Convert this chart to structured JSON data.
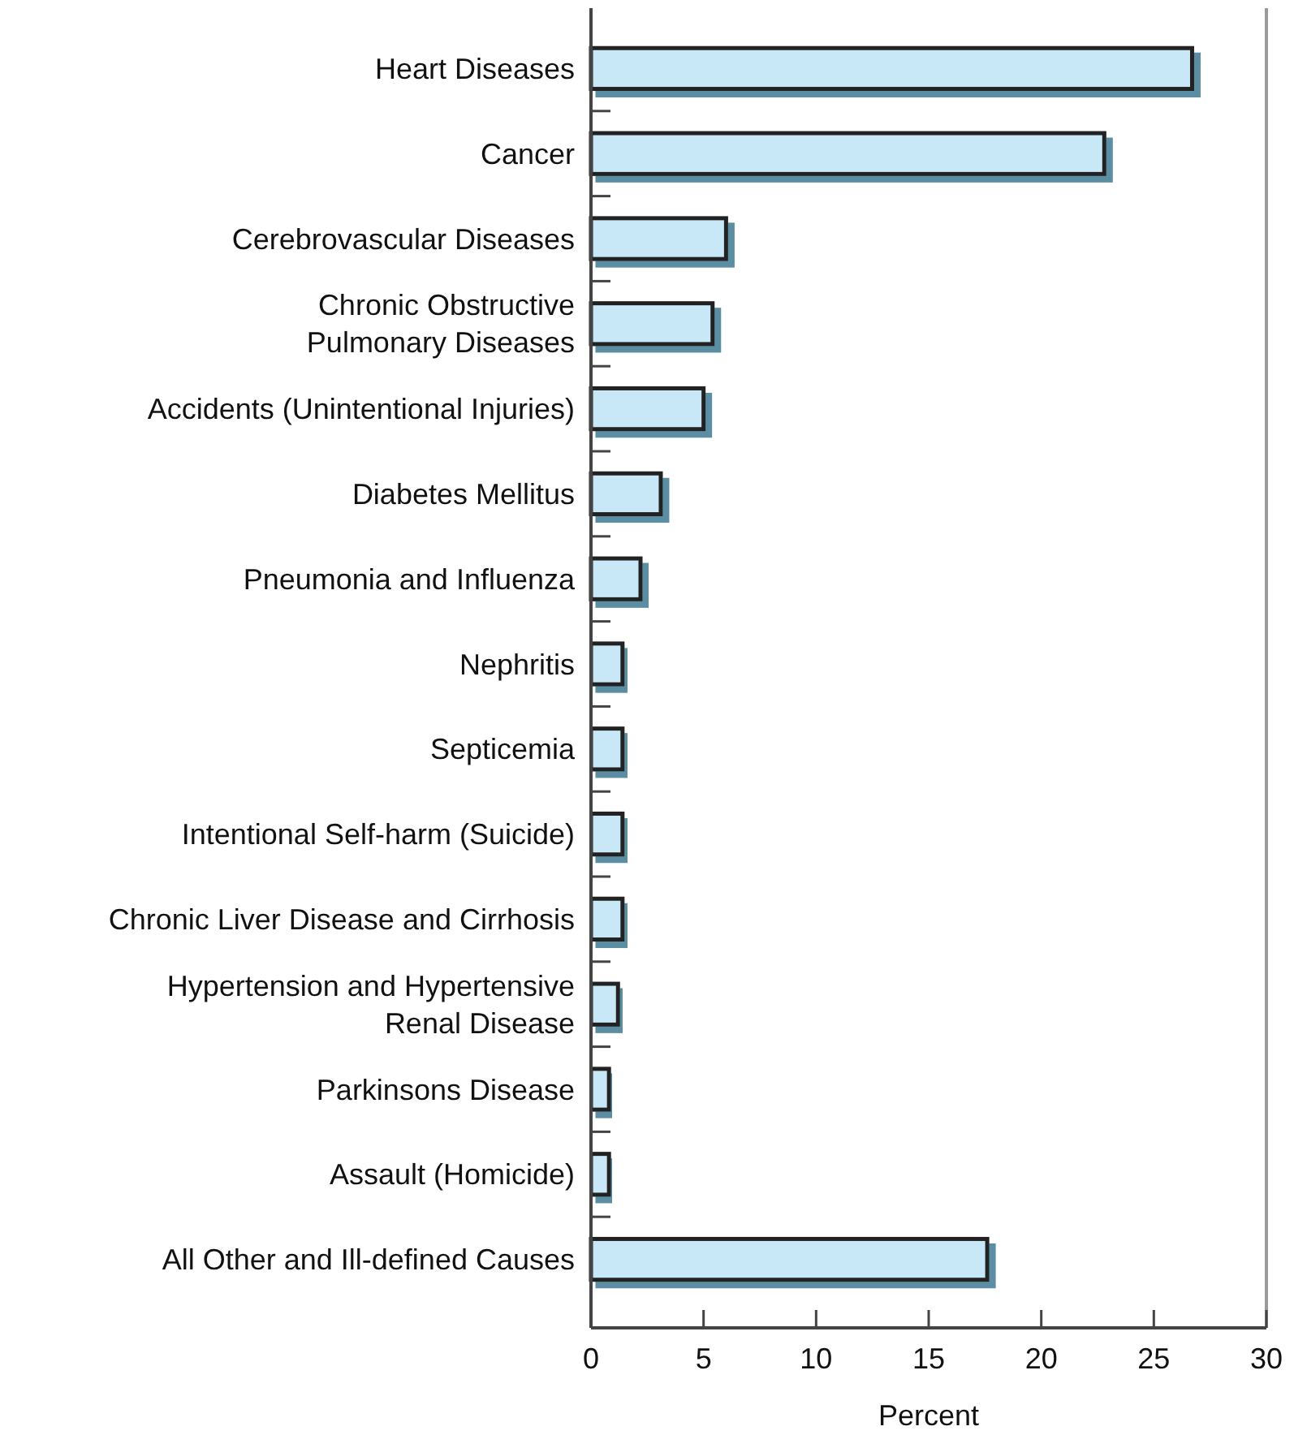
{
  "chart_data": {
    "type": "bar",
    "orientation": "horizontal",
    "xlabel": "Percent",
    "categories": [
      "Heart Diseases",
      "Cancer",
      "Cerebrovascular Diseases",
      "Chronic Obstructive\nPulmonary Diseases",
      "Accidents (Unintentional Injuries)",
      "Diabetes Mellitus",
      "Pneumonia and Influenza",
      "Nephritis",
      "Septicemia",
      "Intentional Self-harm (Suicide)",
      "Chronic Liver Disease and Cirrhosis",
      "Hypertension and Hypertensive\nRenal Disease",
      "Parkinsons Disease",
      "Assault (Homicide)",
      "All Other and Ill-defined Causes"
    ],
    "values": [
      26.7,
      22.8,
      6.0,
      5.4,
      5.0,
      3.1,
      2.2,
      1.4,
      1.4,
      1.4,
      1.4,
      1.2,
      0.8,
      0.8,
      17.6
    ],
    "color": "#c8e8f8",
    "xlim": [
      0,
      30
    ],
    "xticks": [
      0,
      5,
      10,
      15,
      20,
      25,
      30
    ]
  }
}
